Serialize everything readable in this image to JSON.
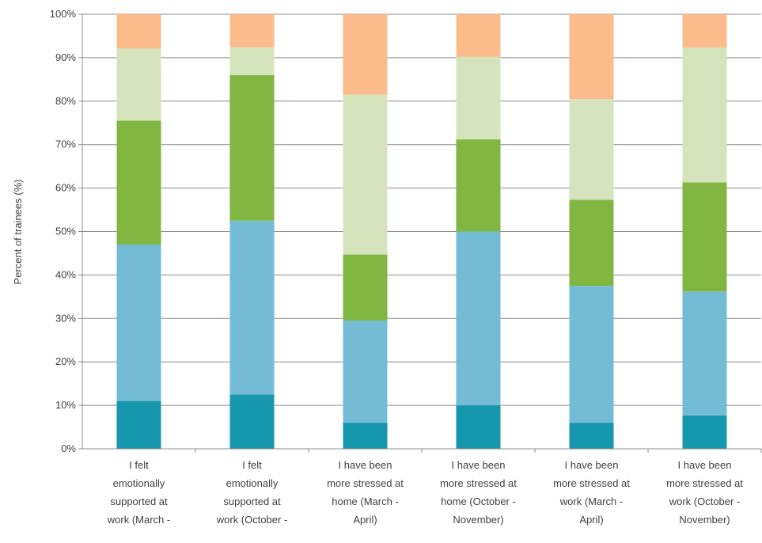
{
  "chart_data": {
    "type": "bar",
    "stacked": true,
    "title": "",
    "xlabel": "",
    "ylabel": "Percent of trainees (%)",
    "ylim": [
      0,
      100
    ],
    "yticks": [
      "0%",
      "10%",
      "20%",
      "30%",
      "40%",
      "50%",
      "60%",
      "70%",
      "80%",
      "90%",
      "100%"
    ],
    "grid": true,
    "legend": "none",
    "categories": [
      [
        "I felt",
        "emotionally",
        "supported at",
        "work (March -"
      ],
      [
        "I felt",
        "emotionally",
        "supported at",
        "work (October -"
      ],
      [
        "I have been",
        "more stressed at",
        "home (March -",
        "April)"
      ],
      [
        "I have been",
        "more stressed at",
        "home (October -",
        "November)"
      ],
      [
        "I have been",
        "more stressed at",
        "work (March -",
        "April)"
      ],
      [
        "I have been",
        "more stressed at",
        "work (October -",
        "November)"
      ]
    ],
    "series": [
      {
        "color": "#1797ad",
        "values": [
          11,
          12.5,
          6,
          10,
          6,
          7.7
        ]
      },
      {
        "color": "#74bcd6",
        "values": [
          36,
          40,
          23.5,
          40,
          31.5,
          28.5
        ]
      },
      {
        "color": "#82b642",
        "values": [
          28.5,
          33.5,
          15.2,
          21.2,
          19.8,
          25.1
        ]
      },
      {
        "color": "#d5e4bd",
        "values": [
          16.6,
          6.4,
          36.8,
          19,
          23.2,
          31
        ]
      },
      {
        "color": "#fbbb8b",
        "values": [
          7.9,
          7.6,
          18.5,
          9.8,
          19.5,
          7.7
        ]
      }
    ]
  }
}
